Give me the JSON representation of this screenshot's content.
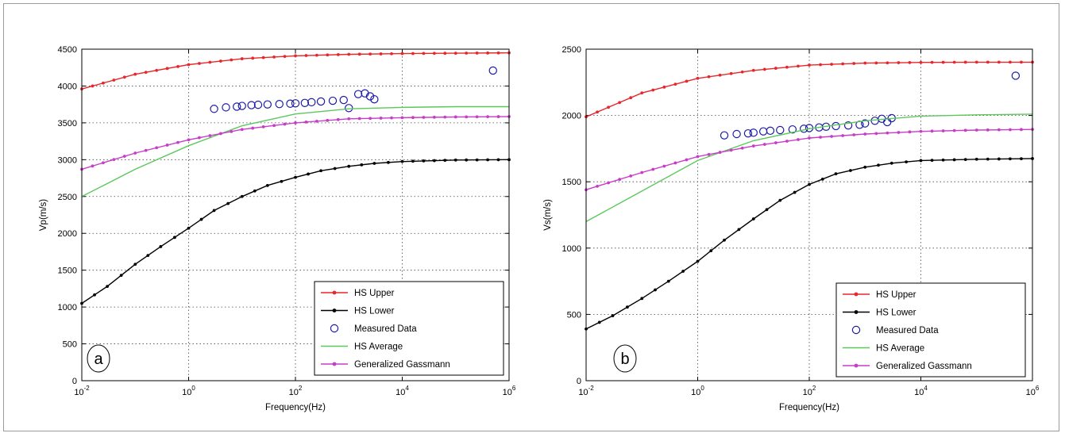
{
  "chart_data": [
    {
      "type": "line",
      "panel_label": "a",
      "xlabel": "Frequency(Hz)",
      "ylabel": "Vp(m/s)",
      "x_scale": "log",
      "xlim": [
        0.01,
        1000000
      ],
      "ylim": [
        0,
        4500
      ],
      "x_ticks": [
        {
          "base": "10",
          "exp": "-2"
        },
        {
          "base": "10",
          "exp": "0"
        },
        {
          "base": "10",
          "exp": "2"
        },
        {
          "base": "10",
          "exp": "4"
        },
        {
          "base": "10",
          "exp": "6"
        }
      ],
      "y_ticks": [
        "0",
        "500",
        "1000",
        "1500",
        "2000",
        "2500",
        "3000",
        "3500",
        "4000",
        "4500"
      ],
      "grid": true,
      "legend_position": "bottom-right",
      "series": [
        {
          "name": "HS Upper",
          "style": "line-dot",
          "color": "#e8262b",
          "x": [
            0.01,
            0.1,
            1,
            10,
            100,
            1000,
            10000,
            100000,
            1000000
          ],
          "y": [
            3960,
            4160,
            4290,
            4370,
            4410,
            4430,
            4440,
            4445,
            4450
          ]
        },
        {
          "name": "HS Lower",
          "style": "line-dot",
          "color": "#000000",
          "x": [
            0.01,
            0.03,
            0.1,
            0.3,
            1,
            3,
            10,
            30,
            100,
            300,
            1000,
            3000,
            10000,
            100000,
            1000000
          ],
          "y": [
            1050,
            1280,
            1580,
            1820,
            2070,
            2310,
            2500,
            2650,
            2760,
            2850,
            2910,
            2950,
            2975,
            2995,
            3000
          ]
        },
        {
          "name": "Measured Data",
          "style": "marker",
          "color": "#1c1ca8",
          "x": [
            3,
            5,
            8,
            10,
            15,
            20,
            30,
            50,
            80,
            100,
            150,
            200,
            300,
            500,
            800,
            1000,
            1500,
            2000,
            2500,
            3000,
            500000
          ],
          "y": [
            3690,
            3710,
            3720,
            3730,
            3740,
            3745,
            3750,
            3755,
            3760,
            3765,
            3770,
            3780,
            3790,
            3800,
            3810,
            3700,
            3890,
            3900,
            3860,
            3820,
            4210
          ]
        },
        {
          "name": "HS Average",
          "style": "line",
          "color": "#5cc85c",
          "x": [
            0.01,
            0.1,
            1,
            10,
            100,
            1000,
            10000,
            100000,
            1000000
          ],
          "y": [
            2500,
            2870,
            3190,
            3460,
            3620,
            3690,
            3710,
            3720,
            3720
          ]
        },
        {
          "name": "Generalized Gassmann",
          "style": "line-dot",
          "color": "#c83cc8",
          "x": [
            0.01,
            0.1,
            1,
            10,
            100,
            1000,
            10000,
            100000,
            1000000
          ],
          "y": [
            2870,
            3090,
            3270,
            3410,
            3500,
            3555,
            3570,
            3580,
            3585
          ]
        }
      ]
    },
    {
      "type": "line",
      "panel_label": "b",
      "xlabel": "Frequency(Hz)",
      "ylabel": "Vs(m/s)",
      "x_scale": "log",
      "xlim": [
        0.01,
        1000000
      ],
      "ylim": [
        0,
        2500
      ],
      "x_ticks": [
        {
          "base": "10",
          "exp": "-2"
        },
        {
          "base": "10",
          "exp": "0"
        },
        {
          "base": "10",
          "exp": "2"
        },
        {
          "base": "10",
          "exp": "4"
        },
        {
          "base": "10",
          "exp": "6"
        }
      ],
      "y_ticks": [
        "0",
        "500",
        "1000",
        "1500",
        "2000",
        "2500"
      ],
      "grid": true,
      "legend_position": "bottom-right",
      "series": [
        {
          "name": "HS Upper",
          "style": "line-dot",
          "color": "#e8262b",
          "x": [
            0.01,
            0.1,
            1,
            10,
            100,
            1000,
            10000,
            100000,
            1000000
          ],
          "y": [
            1990,
            2170,
            2280,
            2340,
            2380,
            2395,
            2400,
            2402,
            2402
          ]
        },
        {
          "name": "HS Lower",
          "style": "line-dot",
          "color": "#000000",
          "x": [
            0.01,
            0.03,
            0.1,
            0.3,
            1,
            3,
            10,
            30,
            100,
            300,
            1000,
            3000,
            10000,
            100000,
            1000000
          ],
          "y": [
            390,
            490,
            620,
            750,
            900,
            1060,
            1220,
            1360,
            1480,
            1560,
            1610,
            1640,
            1660,
            1670,
            1675
          ]
        },
        {
          "name": "Measured Data",
          "style": "marker",
          "color": "#1c1ca8",
          "x": [
            3,
            5,
            8,
            10,
            15,
            20,
            30,
            50,
            80,
            100,
            150,
            200,
            300,
            500,
            800,
            1000,
            1500,
            2000,
            2500,
            3000,
            500000
          ],
          "y": [
            1850,
            1860,
            1865,
            1870,
            1880,
            1885,
            1890,
            1895,
            1900,
            1905,
            1910,
            1915,
            1920,
            1925,
            1930,
            1940,
            1960,
            1975,
            1950,
            1980,
            2300
          ]
        },
        {
          "name": "HS Average",
          "style": "line",
          "color": "#5cc85c",
          "x": [
            0.01,
            0.1,
            1,
            10,
            100,
            1000,
            10000,
            100000,
            1000000
          ],
          "y": [
            1200,
            1430,
            1660,
            1810,
            1900,
            1960,
            1995,
            2005,
            2010
          ]
        },
        {
          "name": "Generalized Gassmann",
          "style": "line-dot",
          "color": "#c83cc8",
          "x": [
            0.01,
            0.1,
            1,
            10,
            100,
            1000,
            10000,
            100000,
            1000000
          ],
          "y": [
            1440,
            1570,
            1690,
            1770,
            1830,
            1860,
            1880,
            1890,
            1895
          ]
        }
      ]
    }
  ]
}
